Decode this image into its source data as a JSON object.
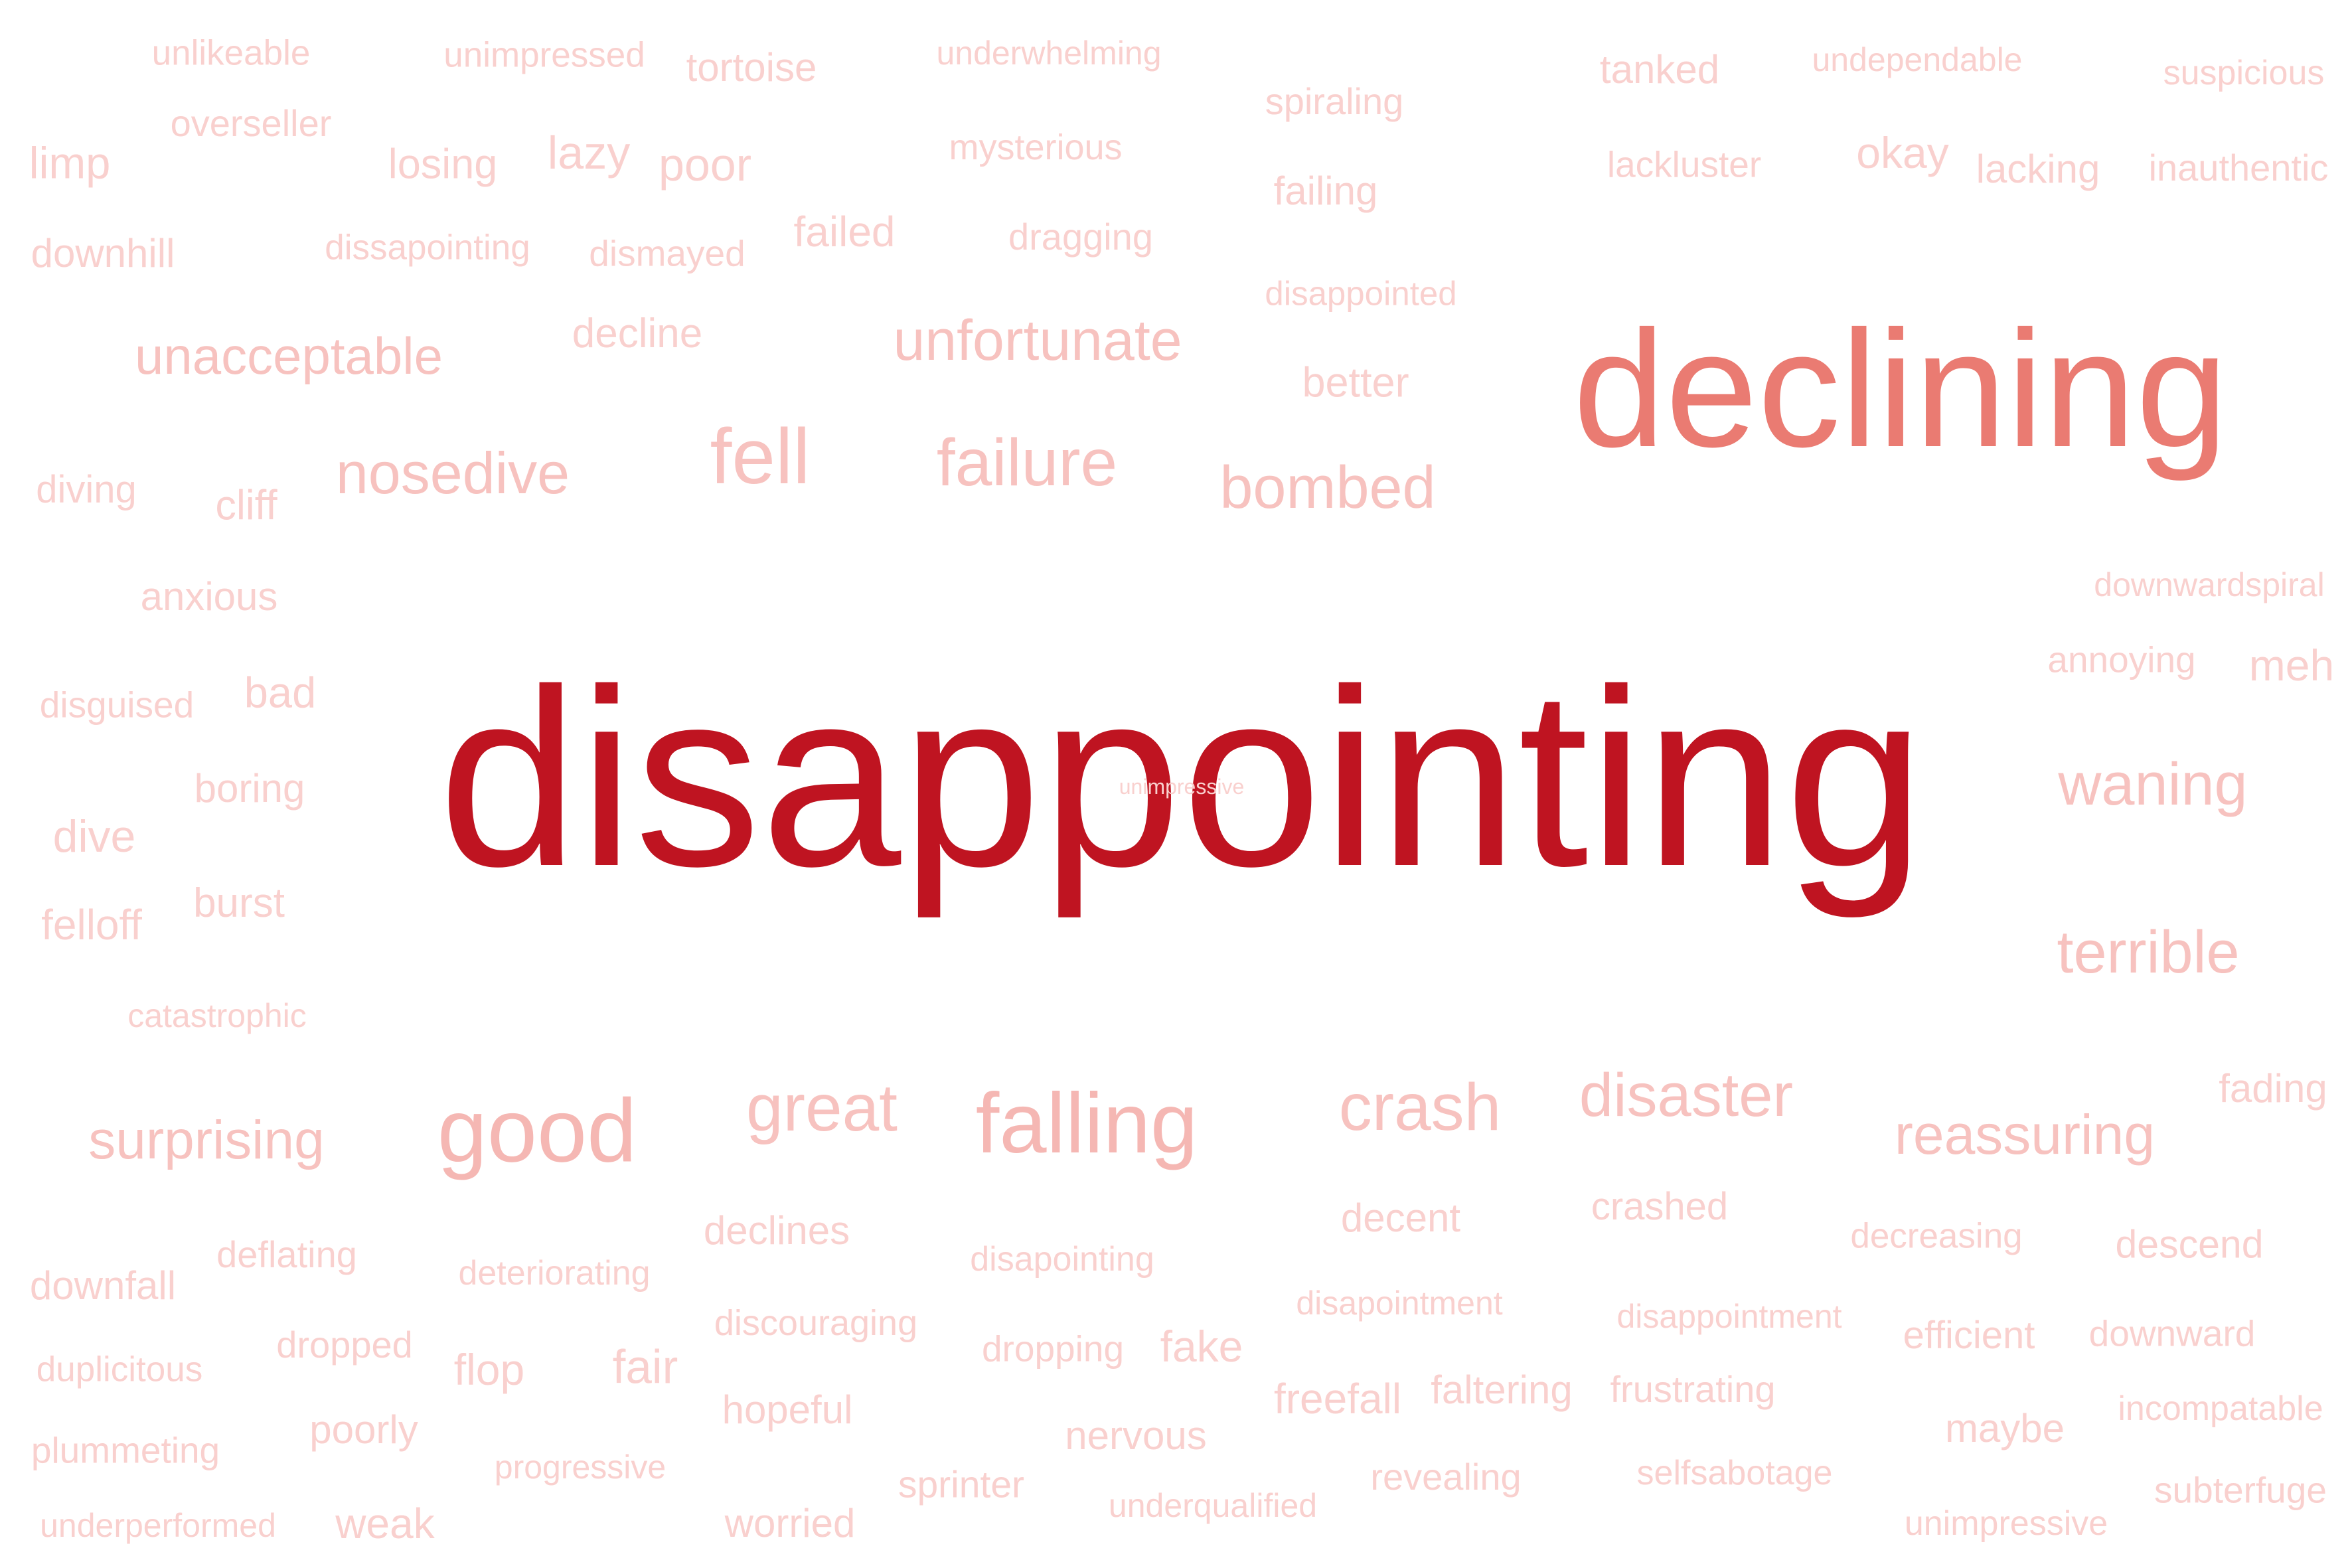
{
  "words": [
    {
      "text": "unlikeable",
      "tier": 1
    },
    {
      "text": "unimpressed",
      "tier": 1
    },
    {
      "text": "tortoise",
      "tier": 1
    },
    {
      "text": "underwhelming",
      "tier": 1
    },
    {
      "text": "spiraling",
      "tier": 1
    },
    {
      "text": "tanked",
      "tier": 1
    },
    {
      "text": "undependable",
      "tier": 1
    },
    {
      "text": "suspicious",
      "tier": 1
    },
    {
      "text": "overseller",
      "tier": 1
    },
    {
      "text": "limp",
      "tier": 1
    },
    {
      "text": "losing",
      "tier": 1
    },
    {
      "text": "lazy",
      "tier": 1
    },
    {
      "text": "poor",
      "tier": 1
    },
    {
      "text": "mysterious",
      "tier": 1
    },
    {
      "text": "failing",
      "tier": 1
    },
    {
      "text": "lackluster",
      "tier": 1
    },
    {
      "text": "okay",
      "tier": 1
    },
    {
      "text": "lacking",
      "tier": 1
    },
    {
      "text": "inauthentic",
      "tier": 1
    },
    {
      "text": "downhill",
      "tier": 1
    },
    {
      "text": "dissapointing",
      "tier": 1
    },
    {
      "text": "dismayed",
      "tier": 1
    },
    {
      "text": "failed",
      "tier": 1
    },
    {
      "text": "dragging",
      "tier": 1
    },
    {
      "text": "disappointed",
      "tier": 1
    },
    {
      "text": "unacceptable",
      "tier": 2
    },
    {
      "text": "decline",
      "tier": 1
    },
    {
      "text": "unfortunate",
      "tier": 2
    },
    {
      "text": "better",
      "tier": 1
    },
    {
      "text": "declining",
      "tier": 4
    },
    {
      "text": "diving",
      "tier": 1
    },
    {
      "text": "cliff",
      "tier": 1
    },
    {
      "text": "nosedive",
      "tier": 2
    },
    {
      "text": "fell",
      "tier": 2
    },
    {
      "text": "failure",
      "tier": 2
    },
    {
      "text": "bombed",
      "tier": 2
    },
    {
      "text": "anxious",
      "tier": 1
    },
    {
      "text": "downwardspiral",
      "tier": 1
    },
    {
      "text": "annoying",
      "tier": 1
    },
    {
      "text": "meh",
      "tier": 1
    },
    {
      "text": "disguised",
      "tier": 1
    },
    {
      "text": "bad",
      "tier": 1
    },
    {
      "text": "disappointing",
      "tier": 5
    },
    {
      "text": "unimpressive",
      "tier": 1
    },
    {
      "text": "boring",
      "tier": 1
    },
    {
      "text": "waning",
      "tier": 2
    },
    {
      "text": "dive",
      "tier": 1
    },
    {
      "text": "felloff",
      "tier": 1
    },
    {
      "text": "burst",
      "tier": 1
    },
    {
      "text": "terrible",
      "tier": 2
    },
    {
      "text": "catastrophic",
      "tier": 1
    },
    {
      "text": "fading",
      "tier": 1
    },
    {
      "text": "surprising",
      "tier": 2
    },
    {
      "text": "good",
      "tier": 3
    },
    {
      "text": "great",
      "tier": 2
    },
    {
      "text": "falling",
      "tier": 3
    },
    {
      "text": "crash",
      "tier": 2
    },
    {
      "text": "disaster",
      "tier": 2
    },
    {
      "text": "reassuring",
      "tier": 2
    },
    {
      "text": "declines",
      "tier": 1
    },
    {
      "text": "decent",
      "tier": 1
    },
    {
      "text": "crashed",
      "tier": 1
    },
    {
      "text": "decreasing",
      "tier": 1
    },
    {
      "text": "descend",
      "tier": 1
    },
    {
      "text": "downfall",
      "tier": 1
    },
    {
      "text": "deflating",
      "tier": 1
    },
    {
      "text": "deteriorating",
      "tier": 1
    },
    {
      "text": "disapointing",
      "tier": 1
    },
    {
      "text": "disapointment",
      "tier": 1
    },
    {
      "text": "disappointment",
      "tier": 1
    },
    {
      "text": "efficient",
      "tier": 1
    },
    {
      "text": "downward",
      "tier": 1
    },
    {
      "text": "discouraging",
      "tier": 1
    },
    {
      "text": "duplicitous",
      "tier": 1
    },
    {
      "text": "dropped",
      "tier": 1
    },
    {
      "text": "flop",
      "tier": 1
    },
    {
      "text": "fair",
      "tier": 1
    },
    {
      "text": "dropping",
      "tier": 1
    },
    {
      "text": "fake",
      "tier": 1
    },
    {
      "text": "freefall",
      "tier": 1
    },
    {
      "text": "faltering",
      "tier": 1
    },
    {
      "text": "frustrating",
      "tier": 1
    },
    {
      "text": "maybe",
      "tier": 1
    },
    {
      "text": "incompatable",
      "tier": 1
    },
    {
      "text": "hopeful",
      "tier": 1
    },
    {
      "text": "plummeting",
      "tier": 1
    },
    {
      "text": "poorly",
      "tier": 1
    },
    {
      "text": "nervous",
      "tier": 1
    },
    {
      "text": "progressive",
      "tier": 1
    },
    {
      "text": "sprinter",
      "tier": 1
    },
    {
      "text": "revealing",
      "tier": 1
    },
    {
      "text": "selfsabotage",
      "tier": 1
    },
    {
      "text": "subterfuge",
      "tier": 1
    },
    {
      "text": "underperformed",
      "tier": 1
    },
    {
      "text": "weak",
      "tier": 1
    },
    {
      "text": "worried",
      "tier": 1
    },
    {
      "text": "underqualified",
      "tier": 1
    },
    {
      "text": "unimpressive",
      "tier": 1
    }
  ],
  "colors": {
    "tier1": "#f9d0ce",
    "tier2": "#f7c2bf",
    "tier3": "#f5b7b3",
    "tier4": "#ea7b72",
    "tier5": "#bf1421",
    "background": "#ffffff"
  }
}
